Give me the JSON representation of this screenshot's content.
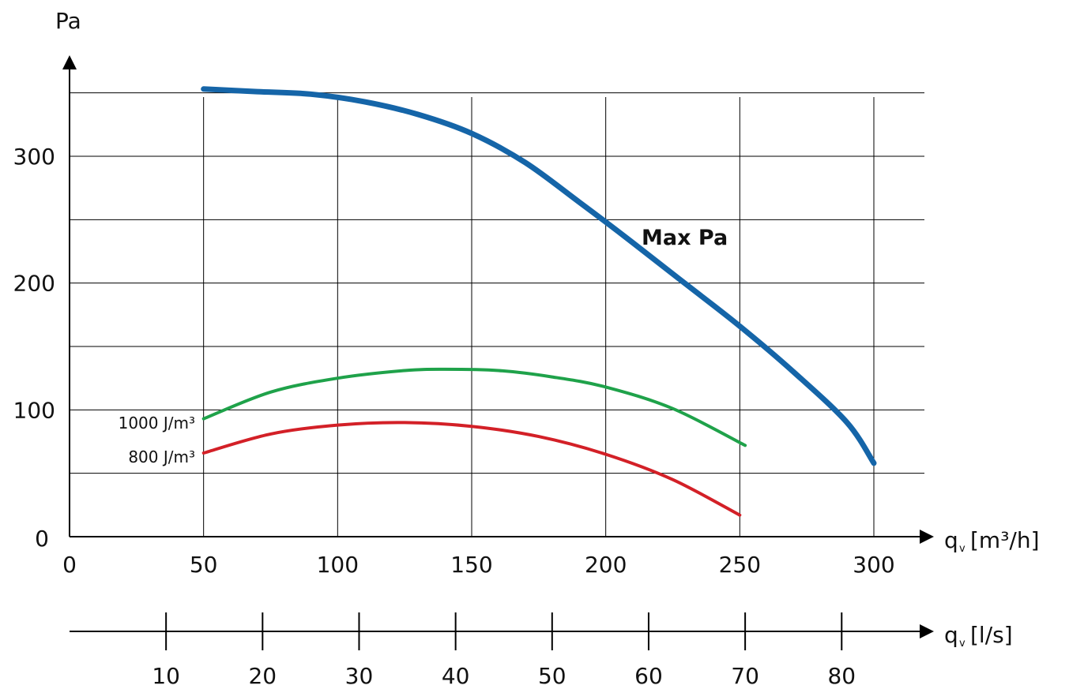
{
  "chart_data": {
    "type": "line",
    "title": "",
    "xlabel": "q_v [m³/h]",
    "ylabel": "Pa",
    "xlim": [
      0,
      300
    ],
    "ylim": [
      0,
      355
    ],
    "x_ticks": [
      0,
      50,
      100,
      150,
      200,
      250,
      300
    ],
    "y_ticks": [
      0,
      100,
      200,
      300
    ],
    "y_tick_labels": [
      "0",
      "100",
      "200",
      "300"
    ],
    "y_gridlines": [
      50,
      100,
      150,
      200,
      250,
      300,
      350
    ],
    "x_gridlines": [
      50,
      100,
      150,
      200,
      250,
      300
    ],
    "grid": true,
    "secondary_x_axis": {
      "label": "q_v [l/s]",
      "ticks": [
        10,
        20,
        30,
        40,
        50,
        60,
        70,
        80
      ],
      "conversion_factor": 3.6
    },
    "series": [
      {
        "name": "Max Pa",
        "color": "#1565A8",
        "x": [
          50,
          70,
          90,
          110,
          130,
          150,
          170,
          190,
          210,
          230,
          250,
          270,
          290,
          300
        ],
        "y": [
          353,
          351,
          349,
          343,
          333,
          318,
          295,
          264,
          232,
          199,
          166,
          130,
          90,
          58
        ]
      },
      {
        "name": "1000 J/m³",
        "color": "#1FA24A",
        "x": [
          50,
          75,
          100,
          125,
          140,
          160,
          180,
          200,
          225,
          252
        ],
        "y": [
          93,
          114,
          125,
          131,
          132,
          131,
          126,
          118,
          101,
          72
        ]
      },
      {
        "name": "800 J/m³",
        "color": "#D32027",
        "x": [
          50,
          75,
          100,
          125,
          150,
          175,
          200,
          225,
          250
        ],
        "y": [
          66,
          81,
          88,
          90,
          87,
          79,
          65,
          45,
          17
        ]
      }
    ]
  },
  "labels": {
    "y_axis_unit": "Pa",
    "x_axis_unit_q": "q",
    "x_axis_unit_sub": "v",
    "x_axis_unit_m3h": "[m³/h]",
    "x2_axis_unit_ls": "[l/s]",
    "max_pa": "Max Pa",
    "curve_1000": "1000 J/m³",
    "curve_800": "800 J/m³"
  }
}
